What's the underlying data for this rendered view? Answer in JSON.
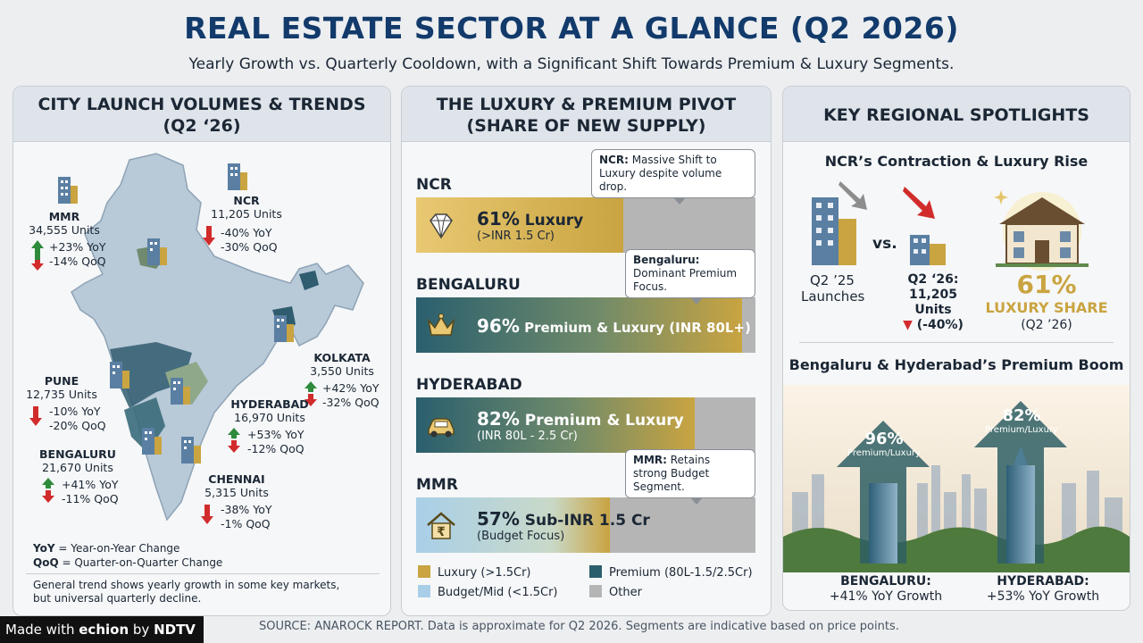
{
  "header": {
    "title": "REAL ESTATE SECTOR AT A GLANCE (Q2 2026)",
    "subtitle": "Yearly Growth vs. Quarterly Cooldown, with a Significant Shift Towards Premium & Luxury Segments."
  },
  "panel1": {
    "title_line1": "CITY LAUNCH VOLUMES & TRENDS",
    "title_line2": "(Q2 ‘26)",
    "cities": [
      {
        "name": "MMR",
        "units": "34,555 Units",
        "yoy": "+23% YoY",
        "qoq": "-14% QoQ"
      },
      {
        "name": "NCR",
        "units": "11,205 Units",
        "yoy": "-40% YoY",
        "qoq": "-30% QoQ"
      },
      {
        "name": "KOLKATA",
        "units": "3,550 Units",
        "yoy": "+42% YoY",
        "qoq": "-32% QoQ"
      },
      {
        "name": "PUNE",
        "units": "12,735 Units",
        "yoy": "-10% YoY",
        "qoq": "-20% QoQ"
      },
      {
        "name": "HYDERABAD",
        "units": "16,970 Units",
        "yoy": "+53% YoY",
        "qoq": "-12% QoQ"
      },
      {
        "name": "BENGALURU",
        "units": "21,670 Units",
        "yoy": "+41% YoY",
        "qoq": "-11% QoQ"
      },
      {
        "name": "CHENNAI",
        "units": "5,315 Units",
        "yoy": "-38% YoY",
        "qoq": "-1% QoQ"
      }
    ],
    "legend_yoy_key": "YoY",
    "legend_yoy": " = Year-on-Year Change",
    "legend_qoq_key": "QoQ",
    "legend_qoq": " = Quarter-on-Quarter Change",
    "note_line1": "General trend shows yearly growth in some key markets,",
    "note_line2": "but universal quarterly decline."
  },
  "panel2": {
    "title_line1": "THE LUXURY & PREMIUM PIVOT",
    "title_line2": "(SHARE OF NEW SUPPLY)",
    "legend": [
      {
        "label": "Luxury (>1.5Cr)",
        "color": "#c9a441"
      },
      {
        "label": "Premium (80L-1.5/2.5Cr)",
        "color": "#2a5f6e"
      },
      {
        "label": "Budget/Mid (<1.5Cr)",
        "color": "#a9cfe8"
      },
      {
        "label": "Other",
        "color": "#b5b5b5"
      }
    ]
  },
  "chart_data": {
    "type": "bar",
    "orientation": "horizontal",
    "unit": "% of new supply",
    "categories": [
      "NCR",
      "BENGALURU",
      "HYDERABAD",
      "MMR"
    ],
    "series": [
      {
        "name": "Luxury (>1.5Cr)",
        "values": [
          61,
          null,
          null,
          null
        ]
      },
      {
        "name": "Premium & Luxury",
        "values": [
          null,
          96,
          82,
          null
        ]
      },
      {
        "name": "Budget/Mid (<1.5Cr)",
        "values": [
          null,
          null,
          null,
          57
        ]
      }
    ],
    "bars": [
      {
        "city": "NCR",
        "value": 61,
        "headline_pct": "61%",
        "headline_text": " Luxury",
        "detail": "(>INR 1.5 Cr)",
        "segment": "luxury",
        "icon": "diamond-icon",
        "callout_bold": "NCR:",
        "callout_text": " Massive Shift to Luxury despite volume drop."
      },
      {
        "city": "BENGALURU",
        "value": 96,
        "headline_pct": "96%",
        "headline_text": " Premium & Luxury (INR 80L+)",
        "detail": "",
        "segment": "premium",
        "icon": "crown-icon",
        "callout_bold": "Bengaluru:",
        "callout_text": " Dominant Premium Focus."
      },
      {
        "city": "HYDERABAD",
        "value": 82,
        "headline_pct": "82%",
        "headline_text": " Premium & Luxury",
        "detail": "(INR 80L - 2.5 Cr)",
        "segment": "premium",
        "icon": "car-icon",
        "callout_bold": "",
        "callout_text": ""
      },
      {
        "city": "MMR",
        "value": 57,
        "headline_pct": "57%",
        "headline_text": " Sub-INR 1.5 Cr",
        "detail": "(Budget Focus)",
        "segment": "budget",
        "icon": "house-rupee-icon",
        "callout_bold": "MMR:",
        "callout_text": " Retains strong Budget Segment."
      }
    ],
    "xlim": [
      0,
      100
    ]
  },
  "panel3": {
    "title": "KEY REGIONAL SPOTLIGHTS",
    "ncr_heading": "NCR’s Contraction & Luxury Rise",
    "q225_line1": "Q2 ’25",
    "q225_line2": "Launches",
    "vs": "vs.",
    "q226_line1": "Q2 ‘26:",
    "q226_line2": "11,205 Units",
    "q226_change": "(-40%)",
    "luxury_share_pct": "61%",
    "luxury_share_label": "LUXURY SHARE",
    "luxury_share_period": "(Q2 ’26)",
    "boom_heading": "Bengaluru & Hyderabad’s Premium Boom",
    "blr_pct": "96%",
    "blr_arrow_label": "Premium/Luxury",
    "hyd_pct": "82%",
    "hyd_arrow_label": "Premium/Luxury",
    "blr_caption1": "BENGALURU:",
    "blr_caption2": "+41% YoY Growth",
    "hyd_caption1": "HYDERABAD:",
    "hyd_caption2": "+53% YoY Growth"
  },
  "footer": {
    "source": "SOURCE: ANAROCK REPORT. Data is approximate for Q2 2026. Segments are indicative based on price points.",
    "made_with": "Made with ",
    "brand1": "echion",
    "by": " by ",
    "brand2": "NDTV"
  },
  "colors": {
    "luxury": "#c9a441",
    "premium": "#2a5f6e",
    "budget": "#a9cfe8",
    "other": "#b5b5b5",
    "up": "#2e8b3c",
    "down": "#d12b2b",
    "title": "#123a6b"
  }
}
